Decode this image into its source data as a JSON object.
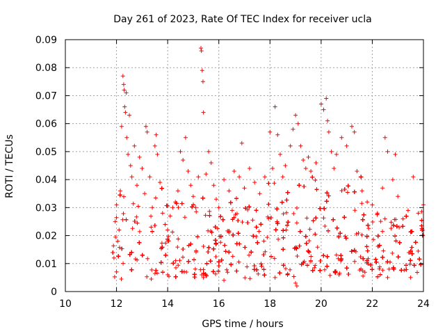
{
  "chart_data": {
    "type": "scatter",
    "title": "Day 261 of 2023, Rate Of TEC Index for receiver ucla",
    "xlabel": "GPS time / hours",
    "ylabel": "ROTI / TECUs",
    "xlim": [
      10,
      24
    ],
    "ylim": [
      0,
      0.09
    ],
    "x_ticks": [
      10,
      12,
      14,
      16,
      18,
      20,
      22,
      24
    ],
    "y_ticks": [
      0,
      0.01,
      0.02,
      0.03,
      0.04,
      0.05,
      0.06,
      0.07,
      0.08,
      0.09
    ],
    "x_tick_labels": [
      "10",
      "12",
      "14",
      "16",
      "18",
      "20",
      "22",
      "24"
    ],
    "y_tick_labels": [
      "0",
      "0.01",
      "0.02",
      "0.03",
      "0.04",
      "0.05",
      "0.06",
      "0.07",
      "0.08",
      "0.09"
    ],
    "grid": true,
    "marker": "+",
    "marker_color": "#ff0000",
    "data_x_range": [
      11.85,
      24
    ],
    "series": [
      {
        "points": [
          [
            11.9,
            0.012
          ],
          [
            11.95,
            0.025
          ],
          [
            12.0,
            0.031
          ],
          [
            12.05,
            0.018
          ],
          [
            12.1,
            0.022
          ],
          [
            12.15,
            0.036
          ],
          [
            12.2,
            0.059
          ],
          [
            12.25,
            0.077
          ],
          [
            12.28,
            0.074
          ],
          [
            12.3,
            0.072
          ],
          [
            12.32,
            0.066
          ],
          [
            12.35,
            0.064
          ],
          [
            12.38,
            0.071
          ],
          [
            12.4,
            0.055
          ],
          [
            12.45,
            0.049
          ],
          [
            12.5,
            0.063
          ],
          [
            12.55,
            0.045
          ],
          [
            12.6,
            0.041
          ],
          [
            12.7,
            0.052
          ],
          [
            12.8,
            0.038
          ],
          [
            12.9,
            0.048
          ],
          [
            13.0,
            0.044
          ],
          [
            13.1,
            0.035
          ],
          [
            13.15,
            0.059
          ],
          [
            13.2,
            0.057
          ],
          [
            13.3,
            0.041
          ],
          [
            13.4,
            0.03
          ],
          [
            13.5,
            0.052
          ],
          [
            13.55,
            0.056
          ],
          [
            13.6,
            0.049
          ],
          [
            13.7,
            0.039
          ],
          [
            13.8,
            0.028
          ],
          [
            13.9,
            0.024
          ],
          [
            14.0,
            0.022
          ],
          [
            14.1,
            0.027
          ],
          [
            14.2,
            0.03
          ],
          [
            14.3,
            0.032
          ],
          [
            14.4,
            0.036
          ],
          [
            14.5,
            0.05
          ],
          [
            14.6,
            0.047
          ],
          [
            14.7,
            0.055
          ],
          [
            14.8,
            0.043
          ],
          [
            14.9,
            0.038
          ],
          [
            15.0,
            0.034
          ],
          [
            15.1,
            0.03
          ],
          [
            15.2,
            0.041
          ],
          [
            15.3,
            0.087
          ],
          [
            15.32,
            0.086
          ],
          [
            15.35,
            0.079
          ],
          [
            15.38,
            0.075
          ],
          [
            15.4,
            0.064
          ],
          [
            15.5,
            0.042
          ],
          [
            15.6,
            0.05
          ],
          [
            15.7,
            0.046
          ],
          [
            15.8,
            0.038
          ],
          [
            15.9,
            0.033
          ],
          [
            16.0,
            0.03
          ],
          [
            16.2,
            0.04
          ],
          [
            16.4,
            0.036
          ],
          [
            16.6,
            0.043
          ],
          [
            16.8,
            0.041
          ],
          [
            16.9,
            0.053
          ],
          [
            17.0,
            0.037
          ],
          [
            17.2,
            0.044
          ],
          [
            17.4,
            0.039
          ],
          [
            17.6,
            0.035
          ],
          [
            17.8,
            0.041
          ],
          [
            18.0,
            0.057
          ],
          [
            18.1,
            0.044
          ],
          [
            18.2,
            0.066
          ],
          [
            18.3,
            0.056
          ],
          [
            18.4,
            0.049
          ],
          [
            18.5,
            0.041
          ],
          [
            18.6,
            0.045
          ],
          [
            18.8,
            0.052
          ],
          [
            18.9,
            0.058
          ],
          [
            19.0,
            0.063
          ],
          [
            19.1,
            0.06
          ],
          [
            19.2,
            0.052
          ],
          [
            19.3,
            0.047
          ],
          [
            19.4,
            0.044
          ],
          [
            19.5,
            0.048
          ],
          [
            19.6,
            0.043
          ],
          [
            19.8,
            0.046
          ],
          [
            20.0,
            0.067
          ],
          [
            20.1,
            0.065
          ],
          [
            20.2,
            0.069
          ],
          [
            20.25,
            0.061
          ],
          [
            20.3,
            0.057
          ],
          [
            20.4,
            0.05
          ],
          [
            20.5,
            0.044
          ],
          [
            20.6,
            0.049
          ],
          [
            20.8,
            0.055
          ],
          [
            21.0,
            0.052
          ],
          [
            21.2,
            0.059
          ],
          [
            21.3,
            0.057
          ],
          [
            21.4,
            0.043
          ],
          [
            21.6,
            0.036
          ],
          [
            21.8,
            0.032
          ],
          [
            22.0,
            0.031
          ],
          [
            22.2,
            0.028
          ],
          [
            22.4,
            0.037
          ],
          [
            22.5,
            0.055
          ],
          [
            22.6,
            0.05
          ],
          [
            22.8,
            0.04
          ],
          [
            22.9,
            0.049
          ],
          [
            23.0,
            0.034
          ],
          [
            23.2,
            0.026
          ],
          [
            23.4,
            0.029
          ],
          [
            23.6,
            0.041
          ],
          [
            23.8,
            0.028
          ],
          [
            24.0,
            0.031
          ],
          [
            19.0,
            0.003
          ],
          [
            19.05,
            0.002
          ],
          [
            18.2,
            0.005
          ],
          [
            15.4,
            0.005
          ],
          [
            16.2,
            0.004
          ],
          [
            22.6,
            0.005
          ],
          [
            23.5,
            0.005
          ],
          [
            20.7,
            0.006
          ],
          [
            12.0,
            0.007
          ],
          [
            14.0,
            0.006
          ]
        ]
      }
    ]
  }
}
